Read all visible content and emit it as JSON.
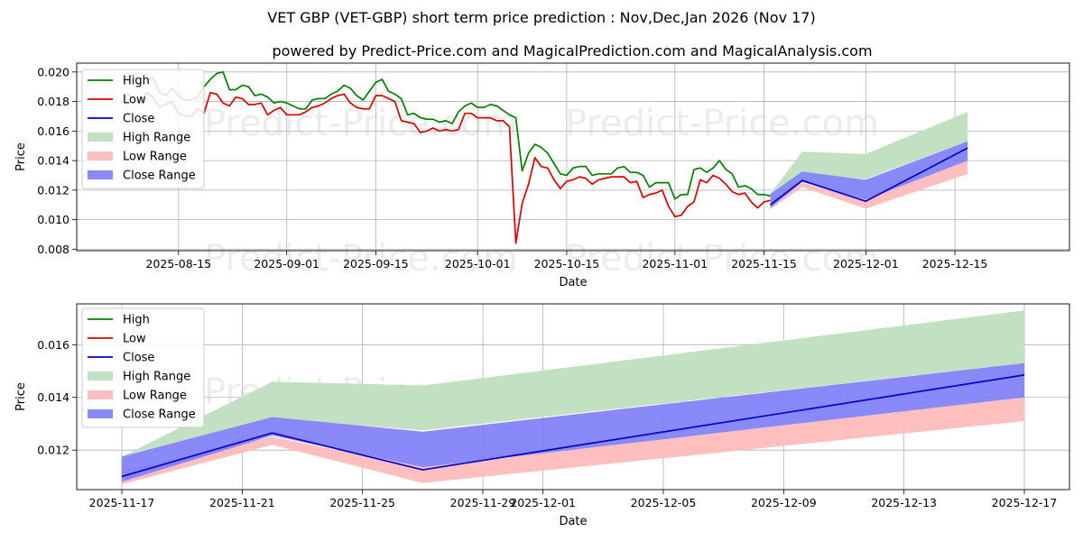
{
  "title": "VET GBP (VET-GBP) short term price prediction : Nov,Dec,Jan 2026 (Nov 17)",
  "subtitle": "powered by Predict-Price.com and MagicalPrediction.com and MagicalAnalysis.com",
  "watermark": "Predict-Price.com",
  "colors": {
    "high": "#008000",
    "low": "#dd0000",
    "close": "#0000cc",
    "high_range": "#c2e0c2",
    "low_range": "#ffbcbc",
    "close_range": "#7f7ff8"
  },
  "legend": [
    "High",
    "Low",
    "Close",
    "High Range",
    "Low Range",
    "Close Range"
  ],
  "chart_data": [
    {
      "type": "line",
      "xlabel": "Date",
      "ylabel": "Price",
      "ylim": [
        0.0079,
        0.0206
      ],
      "xlim_days": [
        -8,
        148
      ],
      "x_origin_date": "2025-08-07",
      "yticks": [
        0.008,
        0.01,
        0.012,
        0.014,
        0.016,
        0.018,
        0.02
      ],
      "ytick_labels": [
        "0.008",
        "0.010",
        "0.012",
        "0.014",
        "0.016",
        "0.018",
        "0.020"
      ],
      "xticks": [
        8,
        25,
        39,
        55,
        69,
        86,
        100,
        116,
        130
      ],
      "xtick_labels": [
        "2025-08-15",
        "2025-09-01",
        "2025-09-15",
        "2025-10-01",
        "2025-10-15",
        "2025-11-01",
        "2025-11-15",
        "2025-12-01",
        "2025-12-15"
      ],
      "series": [
        {
          "name": "High",
          "x": [
            0,
            1,
            2,
            3,
            4,
            5,
            6,
            7,
            8,
            9,
            10,
            11,
            12,
            13,
            14,
            15,
            16,
            17,
            18,
            19,
            20,
            21,
            22,
            23,
            24,
            25,
            26,
            27,
            28,
            29,
            30,
            31,
            32,
            33,
            34,
            35,
            36,
            37,
            38,
            39,
            40,
            41,
            42,
            43,
            44,
            45,
            46,
            47,
            48,
            49,
            50,
            51,
            52,
            53,
            54,
            55,
            56,
            57,
            58,
            59,
            60,
            61,
            62,
            63,
            64,
            65,
            66,
            67,
            68,
            69,
            70,
            71,
            72,
            73,
            74,
            75,
            76,
            77,
            78,
            79,
            80,
            81,
            82,
            83,
            84,
            85,
            86,
            87,
            88,
            89,
            90,
            91,
            92,
            93,
            94,
            95,
            96,
            97,
            98,
            99,
            100,
            101
          ],
          "values": [
            0.0198,
            0.0197,
            0.0189,
            0.0194,
            0.0196,
            0.0186,
            0.0184,
            0.0189,
            0.0184,
            0.0181,
            0.0181,
            0.0183,
            0.019,
            0.0195,
            0.0199,
            0.02,
            0.0188,
            0.0188,
            0.0191,
            0.019,
            0.0184,
            0.0185,
            0.0183,
            0.0179,
            0.018,
            0.0179,
            0.0177,
            0.0175,
            0.0175,
            0.0181,
            0.0182,
            0.0182,
            0.0185,
            0.0187,
            0.0191,
            0.0189,
            0.0184,
            0.0181,
            0.0187,
            0.0193,
            0.0195,
            0.0187,
            0.0185,
            0.0182,
            0.0171,
            0.0172,
            0.0169,
            0.0168,
            0.0168,
            0.0166,
            0.0167,
            0.0165,
            0.0173,
            0.0177,
            0.0179,
            0.0176,
            0.0176,
            0.0178,
            0.0177,
            0.0174,
            0.0171,
            0.0169,
            0.0133,
            0.0145,
            0.0151,
            0.0149,
            0.0145,
            0.0138,
            0.0131,
            0.013,
            0.0135,
            0.0136,
            0.0136,
            0.013,
            0.0131,
            0.0131,
            0.0131,
            0.0135,
            0.0136,
            0.0132,
            0.0132,
            0.013,
            0.0122,
            0.0125,
            0.0125,
            0.0125,
            0.0114,
            0.0117,
            0.0117,
            0.0134,
            0.0135,
            0.0132,
            0.0135,
            0.014,
            0.0134,
            0.0131,
            0.0122,
            0.0123,
            0.0121,
            0.0117,
            0.0117,
            0.0116
          ]
        },
        {
          "name": "Low",
          "x": [
            0,
            1,
            2,
            3,
            4,
            5,
            6,
            7,
            8,
            9,
            10,
            11,
            12,
            13,
            14,
            15,
            16,
            17,
            18,
            19,
            20,
            21,
            22,
            23,
            24,
            25,
            26,
            27,
            28,
            29,
            30,
            31,
            32,
            33,
            34,
            35,
            36,
            37,
            38,
            39,
            40,
            41,
            42,
            43,
            44,
            45,
            46,
            47,
            48,
            49,
            50,
            51,
            52,
            53,
            54,
            55,
            56,
            57,
            58,
            59,
            60,
            61,
            62,
            63,
            64,
            65,
            66,
            67,
            68,
            69,
            70,
            71,
            72,
            73,
            74,
            75,
            76,
            77,
            78,
            79,
            80,
            81,
            82,
            83,
            84,
            85,
            86,
            87,
            88,
            89,
            90,
            91,
            92,
            93,
            94,
            95,
            96,
            97,
            98,
            99,
            100,
            101
          ],
          "values": [
            0.0185,
            0.0181,
            0.0179,
            0.0186,
            0.0183,
            0.0176,
            0.0178,
            0.018,
            0.0172,
            0.017,
            0.017,
            0.0175,
            0.0172,
            0.0186,
            0.0185,
            0.0179,
            0.0177,
            0.0183,
            0.0182,
            0.0178,
            0.0178,
            0.0179,
            0.0171,
            0.0174,
            0.0176,
            0.0171,
            0.0171,
            0.0171,
            0.0173,
            0.0176,
            0.0177,
            0.0179,
            0.0182,
            0.0184,
            0.0185,
            0.0179,
            0.0176,
            0.0175,
            0.0175,
            0.0184,
            0.0184,
            0.0182,
            0.018,
            0.0167,
            0.0166,
            0.0165,
            0.0159,
            0.016,
            0.0162,
            0.016,
            0.0161,
            0.016,
            0.0161,
            0.0172,
            0.0172,
            0.0169,
            0.0169,
            0.0169,
            0.0167,
            0.0167,
            0.0163,
            0.0084,
            0.0111,
            0.0124,
            0.0142,
            0.0136,
            0.0135,
            0.0127,
            0.0121,
            0.0126,
            0.0127,
            0.0129,
            0.0128,
            0.0124,
            0.0127,
            0.0128,
            0.0129,
            0.0129,
            0.0129,
            0.0125,
            0.0126,
            0.0115,
            0.0117,
            0.0118,
            0.012,
            0.0109,
            0.0102,
            0.0103,
            0.0109,
            0.0112,
            0.0127,
            0.0125,
            0.013,
            0.0128,
            0.0124,
            0.0119,
            0.0117,
            0.0118,
            0.0112,
            0.0108,
            0.0112,
            0.0113
          ]
        },
        {
          "name": "High Range",
          "x": [
            101,
            106,
            116,
            132
          ],
          "upper": [
            0.01175,
            0.0146,
            0.01445,
            0.0173
          ],
          "lower": [
            0.01175,
            0.0132,
            0.01275,
            0.0153
          ]
        },
        {
          "name": "Low Range",
          "x": [
            101,
            106,
            116,
            132
          ],
          "upper": [
            0.0112,
            0.0125,
            0.01135,
            0.014
          ],
          "lower": [
            0.0107,
            0.0122,
            0.01075,
            0.0131
          ]
        },
        {
          "name": "Close Range",
          "x": [
            101,
            106,
            116,
            132
          ],
          "upper": [
            0.01175,
            0.01325,
            0.0127,
            0.0153
          ],
          "lower": [
            0.0108,
            0.01255,
            0.01135,
            0.014
          ]
        },
        {
          "name": "Close",
          "x": [
            101,
            106,
            116,
            132
          ],
          "values": [
            0.011,
            0.01265,
            0.01125,
            0.01485
          ]
        }
      ]
    },
    {
      "type": "line",
      "xlabel": "Date",
      "ylabel": "Price",
      "ylim": [
        0.0105,
        0.01755
      ],
      "xlim_days": [
        -1.5,
        31.5
      ],
      "x_origin_date": "2025-11-17",
      "yticks": [
        0.012,
        0.014,
        0.016
      ],
      "ytick_labels": [
        "0.012",
        "0.014",
        "0.016"
      ],
      "xticks": [
        0,
        4,
        8,
        12,
        14,
        18,
        22,
        26,
        30
      ],
      "xtick_labels": [
        "2025-11-17",
        "2025-11-21",
        "2025-11-25",
        "2025-11-29",
        "2025-12-01",
        "2025-12-05",
        "2025-12-09",
        "2025-12-13",
        "2025-12-17"
      ],
      "series": [
        {
          "name": "High Range",
          "x": [
            0,
            5,
            10,
            30
          ],
          "upper": [
            0.01175,
            0.0146,
            0.01445,
            0.0173
          ],
          "lower": [
            0.01175,
            0.0132,
            0.01275,
            0.0153
          ]
        },
        {
          "name": "Low Range",
          "x": [
            0,
            5,
            10,
            30
          ],
          "upper": [
            0.0112,
            0.0125,
            0.01135,
            0.014
          ],
          "lower": [
            0.0107,
            0.0122,
            0.01075,
            0.0131
          ]
        },
        {
          "name": "Close Range",
          "x": [
            0,
            5,
            10,
            30
          ],
          "upper": [
            0.01175,
            0.01325,
            0.0127,
            0.0153
          ],
          "lower": [
            0.0108,
            0.01255,
            0.01135,
            0.014
          ]
        },
        {
          "name": "Close",
          "x": [
            0,
            5,
            10,
            30
          ],
          "values": [
            0.011,
            0.01265,
            0.01125,
            0.01485
          ]
        }
      ]
    }
  ]
}
